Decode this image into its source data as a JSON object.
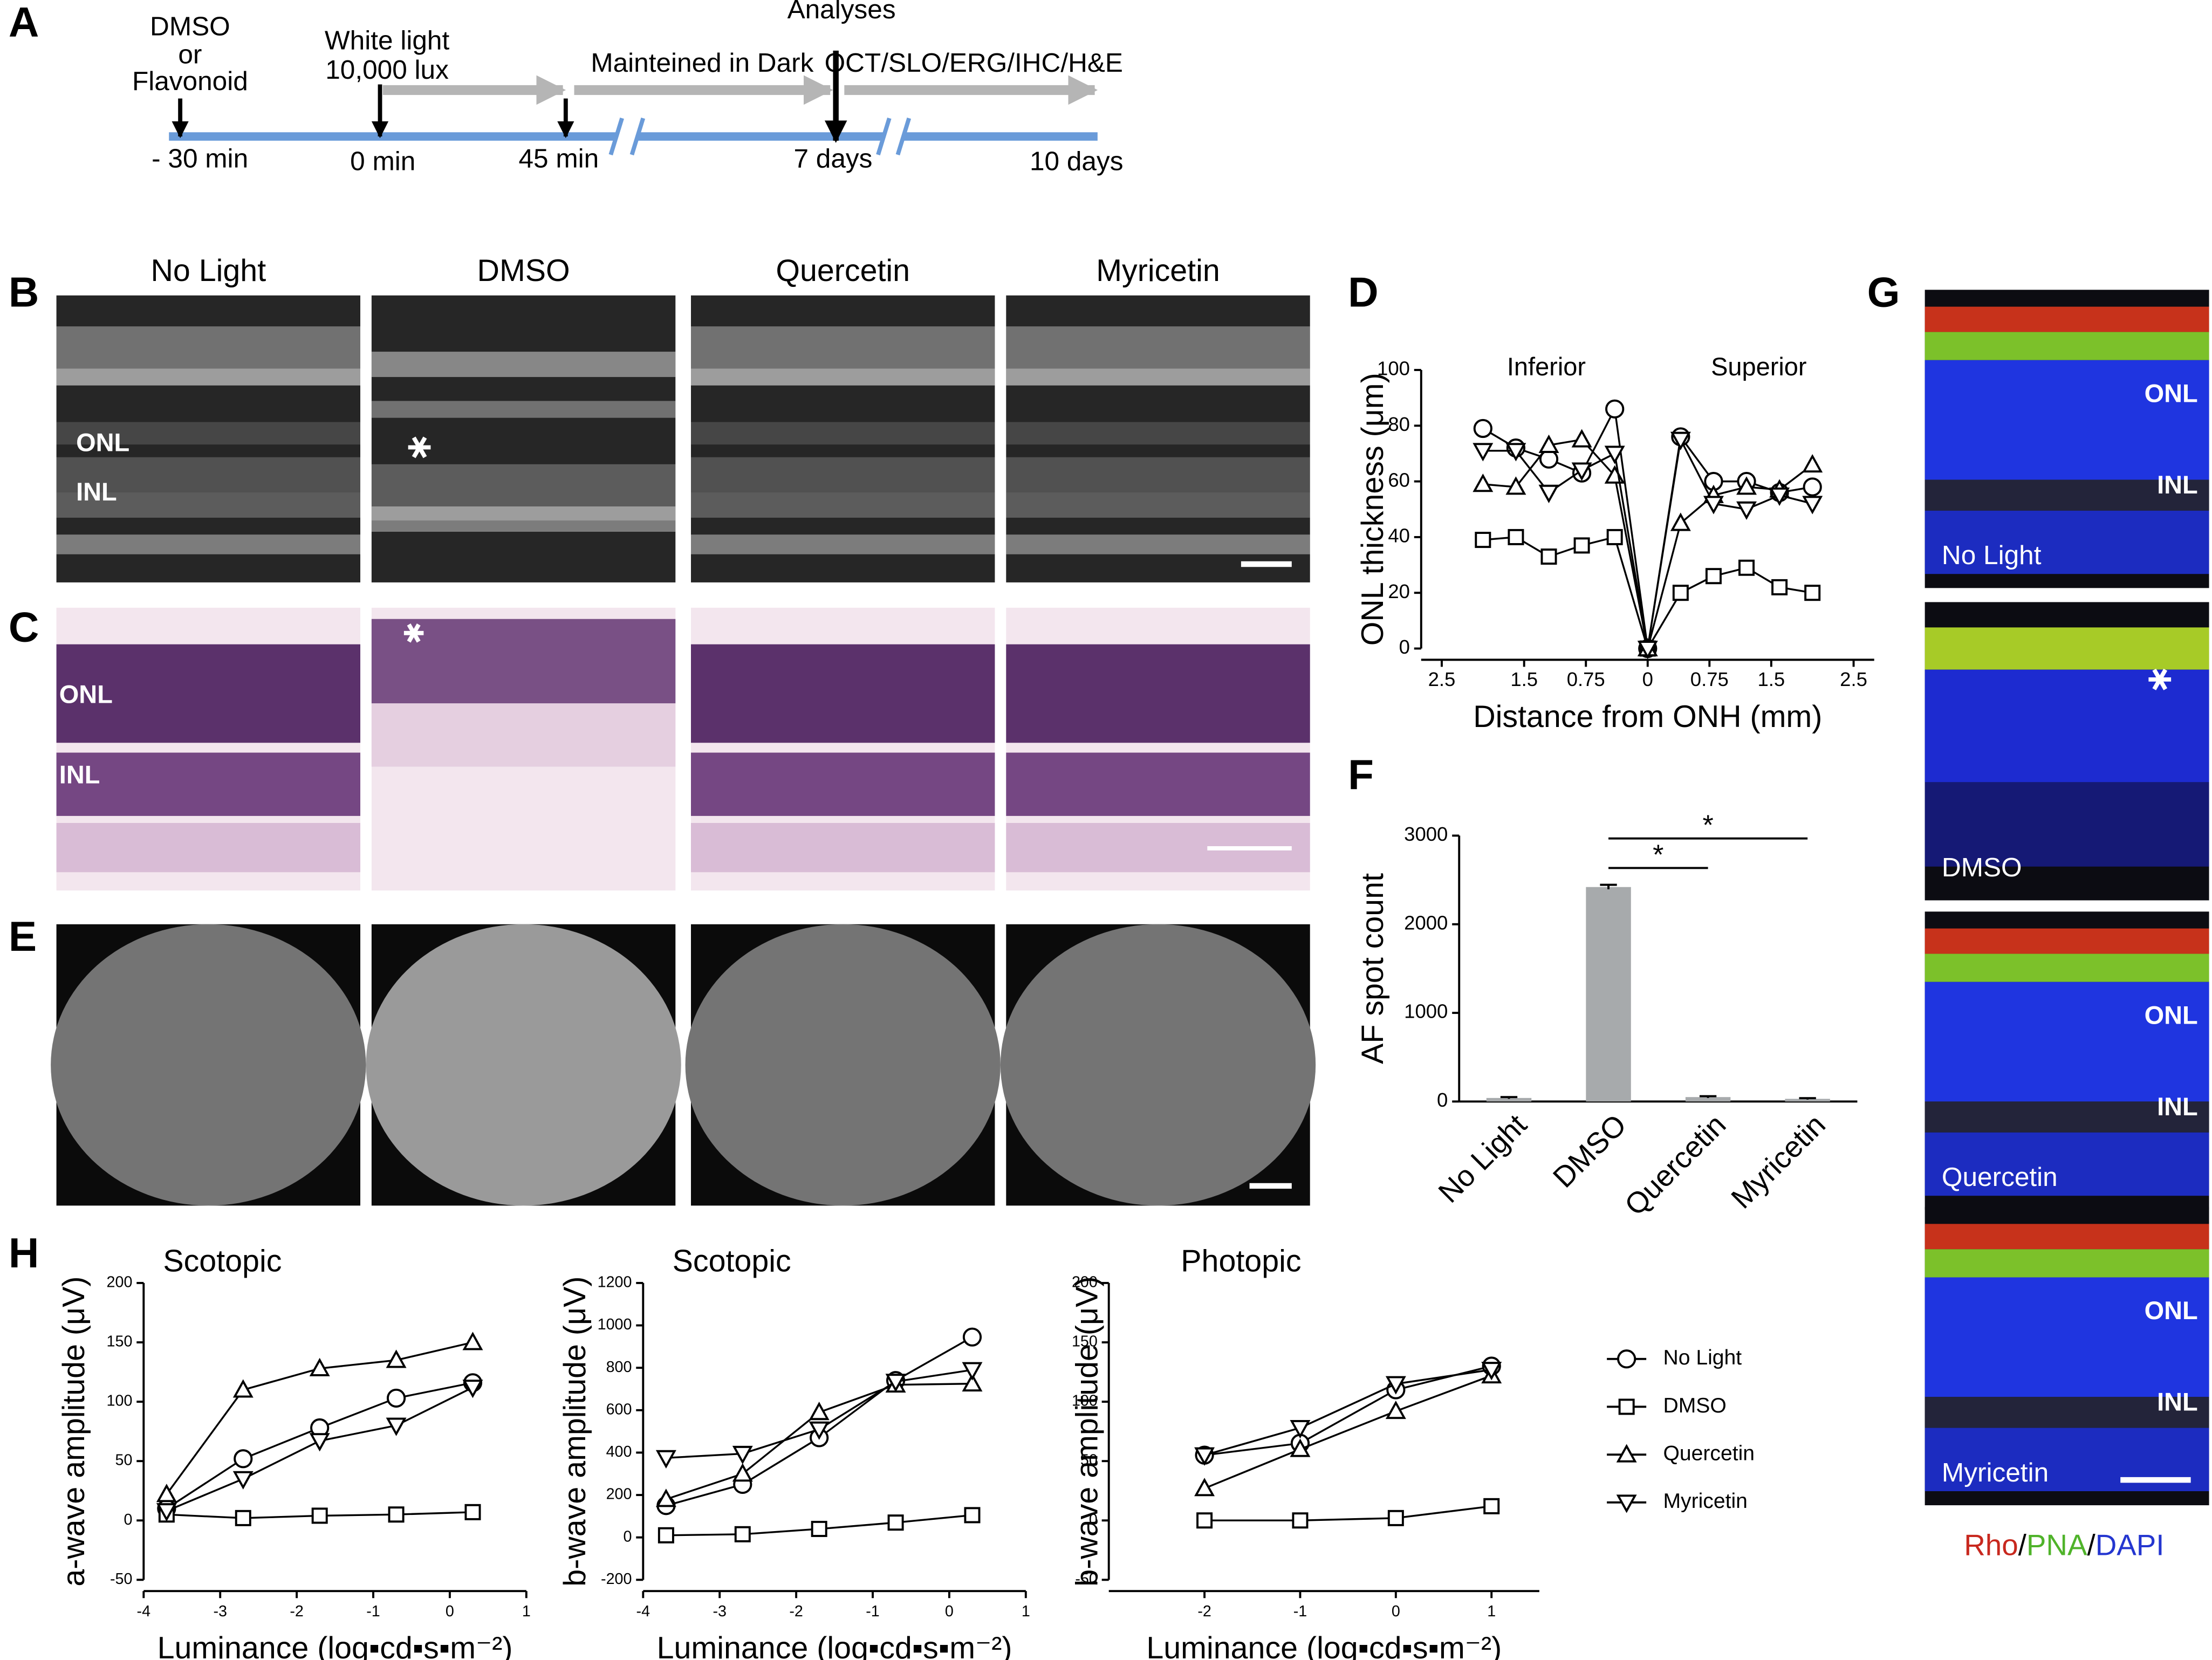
{
  "panel_labels": [
    "A",
    "B",
    "C",
    "D",
    "E",
    "F",
    "G",
    "H"
  ],
  "timeline": {
    "steps": [
      "DMSO",
      "or",
      "Flavonoid",
      "White light",
      "10,000 lux",
      "Analyses",
      "Mainteined in Dark",
      "OCT/SLO/ERG/IHC/H&E"
    ],
    "times": [
      "- 30 min",
      "0 min",
      "45 min",
      "7 days",
      "10 days"
    ]
  },
  "images": {
    "conditions": [
      "No Light",
      "DMSO",
      "Quercetin",
      "Myricetin"
    ],
    "layer_labels": [
      "ONL",
      "INL"
    ]
  },
  "fluorescence": {
    "stain_labels": [
      "Rho",
      "PNA",
      "DAPI"
    ],
    "separator": "/"
  },
  "chart_data": [
    {
      "type": "line",
      "xlabel": "Distance from ONH (mm)",
      "ylabel": "ONL thickness (μm)",
      "annotations": [
        "Inferior",
        "Superior"
      ],
      "x": [
        -2.0,
        -1.6,
        -1.2,
        -0.8,
        -0.4,
        0,
        0.4,
        0.8,
        1.2,
        1.6,
        2.0
      ],
      "xlim": [
        -2.75,
        2.75
      ],
      "xticks": [
        {
          "value": -2.5,
          "label": "2.5"
        },
        {
          "value": -1.5,
          "label": "1.5"
        },
        {
          "value": -0.75,
          "label": "0.75"
        },
        0,
        0.75,
        1.5,
        2.5
      ],
      "ylim": [
        0,
        100
      ],
      "yticks": [
        0,
        20,
        40,
        60,
        80,
        100
      ],
      "series": [
        {
          "name": "No Light",
          "color": "#000000",
          "marker": "circle",
          "values": [
            79,
            72,
            68,
            63,
            86,
            0,
            76,
            60,
            60,
            56,
            58
          ]
        },
        {
          "name": "DMSO",
          "color": "#000000",
          "marker": "square",
          "values": [
            39,
            40,
            33,
            37,
            40,
            0,
            20,
            26,
            29,
            22,
            20
          ]
        },
        {
          "name": "Quercetin",
          "color": "#000000",
          "marker": "triangle-up",
          "values": [
            59,
            58,
            73,
            75,
            62,
            0,
            45,
            55,
            58,
            57,
            66
          ]
        },
        {
          "name": "Myricetin",
          "color": "#000000",
          "marker": "triangle-down",
          "values": [
            71,
            71,
            56,
            64,
            70,
            0,
            75,
            52,
            50,
            55,
            52
          ]
        }
      ]
    },
    {
      "type": "bar",
      "ylabel": "AF spot count",
      "categories": [
        "No Light",
        "DMSO",
        "Quercetin",
        "Myricetin"
      ],
      "values": [
        40,
        2420,
        50,
        30
      ],
      "errors": [
        10,
        25,
        10,
        8
      ],
      "color": "#a7aaac",
      "ylim": [
        0,
        3000
      ],
      "yticks": [
        0,
        1000,
        2000,
        3000
      ],
      "significance": [
        {
          "from": "DMSO",
          "to": "Quercetin",
          "label": "*"
        },
        {
          "from": "DMSO",
          "to": "Myricetin",
          "label": "*"
        }
      ]
    },
    {
      "type": "line",
      "title": "Scotopic",
      "xlabel": "Luminance (log▪cd▪s▪m⁻²)",
      "ylabel": "a-wave amplitude (μV)",
      "x": [
        -3.7,
        -2.7,
        -1.7,
        -0.7,
        0.3
      ],
      "xlim": [
        -4,
        1
      ],
      "xticks": [
        -4,
        -3,
        -2,
        -1,
        0,
        1
      ],
      "ylim": [
        -50,
        200
      ],
      "yticks": [
        -50,
        0,
        50,
        100,
        150,
        200
      ],
      "series": [
        {
          "name": "No Light",
          "color": "#000000",
          "marker": "circle",
          "values": [
            10,
            52,
            78,
            103,
            116
          ]
        },
        {
          "name": "DMSO",
          "color": "#000000",
          "marker": "square",
          "values": [
            5,
            2,
            4,
            5,
            7
          ]
        },
        {
          "name": "Quercetin",
          "color": "#000000",
          "marker": "triangle-up",
          "values": [
            22,
            110,
            128,
            135,
            150
          ]
        },
        {
          "name": "Myricetin",
          "color": "#000000",
          "marker": "triangle-down",
          "values": [
            8,
            35,
            67,
            80,
            112
          ]
        }
      ]
    },
    {
      "type": "line",
      "title": "Scotopic",
      "xlabel": "Luminance (log▪cd▪s▪m⁻²)",
      "ylabel": "b-wave amplitude (μV)",
      "x": [
        -3.7,
        -2.7,
        -1.7,
        -0.7,
        0.3
      ],
      "xlim": [
        -4,
        1
      ],
      "xticks": [
        -4,
        -3,
        -2,
        -1,
        0,
        1
      ],
      "ylim": [
        -200,
        1200
      ],
      "yticks": [
        -200,
        0,
        200,
        400,
        600,
        800,
        1000,
        1200
      ],
      "series": [
        {
          "name": "No Light",
          "color": "#000000",
          "marker": "circle",
          "values": [
            150,
            250,
            470,
            740,
            945
          ]
        },
        {
          "name": "DMSO",
          "color": "#000000",
          "marker": "square",
          "values": [
            10,
            15,
            40,
            70,
            105
          ]
        },
        {
          "name": "Quercetin",
          "color": "#000000",
          "marker": "triangle-up",
          "values": [
            180,
            300,
            590,
            720,
            725
          ]
        },
        {
          "name": "Myricetin",
          "color": "#000000",
          "marker": "triangle-down",
          "values": [
            375,
            395,
            510,
            735,
            790
          ]
        }
      ]
    },
    {
      "type": "line",
      "title": "Photopic",
      "xlabel": "Luminance (log▪cd▪s▪m⁻²)",
      "ylabel": "b-wave amplitude (μV)",
      "x": [
        -2,
        -1,
        0,
        1
      ],
      "xlim": [
        -3,
        1.5
      ],
      "xticks": [
        -2,
        -1,
        0,
        1
      ],
      "ylim": [
        -50,
        200
      ],
      "yticks": [
        -50,
        0,
        50,
        100,
        150,
        200
      ],
      "legend": "right",
      "series": [
        {
          "name": "No Light",
          "color": "#000000",
          "marker": "circle",
          "values": [
            55,
            65,
            110,
            130
          ]
        },
        {
          "name": "DMSO",
          "color": "#000000",
          "marker": "square",
          "values": [
            0,
            0,
            2,
            12
          ]
        },
        {
          "name": "Quercetin",
          "color": "#000000",
          "marker": "triangle-up",
          "values": [
            27,
            60,
            92,
            122
          ]
        },
        {
          "name": "Myricetin",
          "color": "#000000",
          "marker": "triangle-down",
          "values": [
            55,
            78,
            115,
            127
          ]
        }
      ]
    }
  ]
}
